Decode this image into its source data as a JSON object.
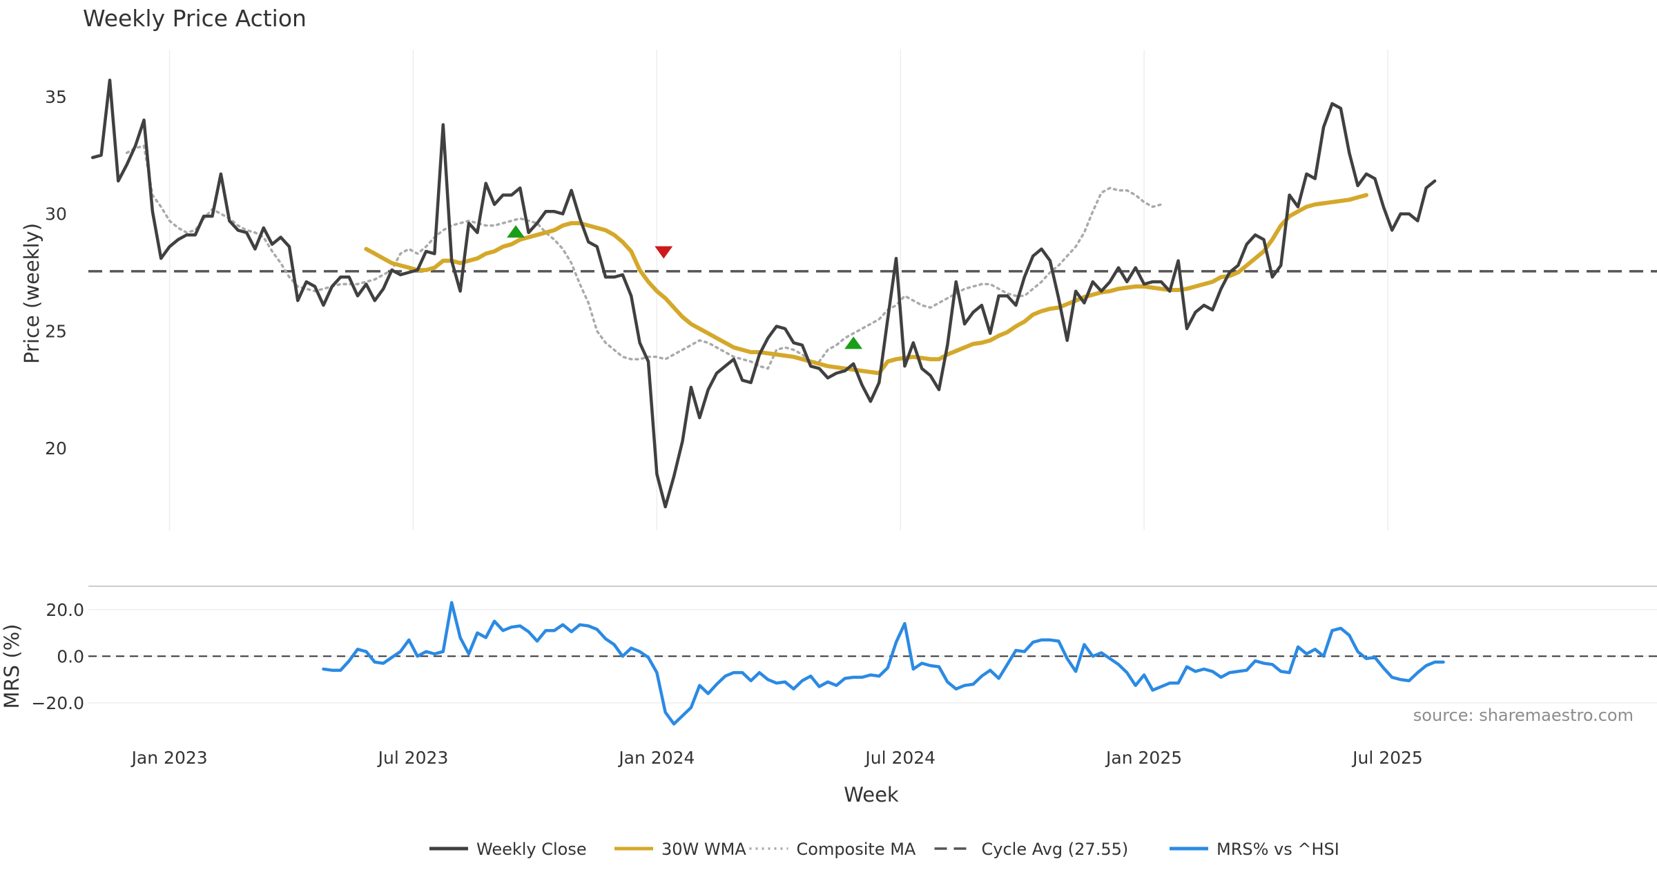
{
  "chart_data": [
    {
      "type": "line",
      "title": "Weekly Price Action",
      "xlabel": "",
      "ylabel": "Price (weekly)",
      "ylim": [
        16.5,
        37
      ],
      "xlim": [
        -1.5,
        182
      ],
      "yticks": [
        20,
        25,
        30,
        35
      ],
      "xtick_positions": [
        8,
        36.5,
        65,
        93.5,
        122,
        150.5
      ],
      "xtick_labels": [
        "Jan 2023",
        "Jul 2023",
        "Jan 2024",
        "Jul 2024",
        "Jan 2025",
        "Jul 2025"
      ],
      "cycle_avg": 27.55,
      "series": [
        {
          "name": "Weekly Close",
          "color": "#404040",
          "x_start": -1,
          "values": [
            32.4,
            32.5,
            35.7,
            31.4,
            32.1,
            32.9,
            34.0,
            30.1,
            28.1,
            28.6,
            28.9,
            29.1,
            29.1,
            29.9,
            29.9,
            31.7,
            29.7,
            29.3,
            29.2,
            28.5,
            29.4,
            28.7,
            29.0,
            28.6,
            26.3,
            27.1,
            26.9,
            26.1,
            26.9,
            27.3,
            27.3,
            26.5,
            27.0,
            26.3,
            26.8,
            27.6,
            27.4,
            27.5,
            27.6,
            28.4,
            28.3,
            33.8,
            28.0,
            26.7,
            29.6,
            29.2,
            31.3,
            30.4,
            30.8,
            30.8,
            31.1,
            29.2,
            29.6,
            30.1,
            30.1,
            30.0,
            31.0,
            29.8,
            28.8,
            28.6,
            27.3,
            27.3,
            27.4,
            26.5,
            24.5,
            23.7,
            18.9,
            17.5,
            18.8,
            20.3,
            22.6,
            21.3,
            22.5,
            23.2,
            23.5,
            23.8,
            22.9,
            22.8,
            24.0,
            24.7,
            25.2,
            25.1,
            24.5,
            24.4,
            23.5,
            23.4,
            23.0,
            23.2,
            23.3,
            23.6,
            22.7,
            22.0,
            22.8,
            25.5,
            28.1,
            23.5,
            24.5,
            23.4,
            23.1,
            22.5,
            24.4,
            27.1,
            25.3,
            25.8,
            26.1,
            24.9,
            26.5,
            26.5,
            26.1,
            27.3,
            28.2,
            28.5,
            28.0,
            26.4,
            24.6,
            26.7,
            26.2,
            27.1,
            26.7,
            27.1,
            27.7,
            27.1,
            27.7,
            27.0,
            27.1,
            27.1,
            26.7,
            28.0,
            25.1,
            25.8,
            26.1,
            25.9,
            26.8,
            27.5,
            27.8,
            28.7,
            29.1,
            28.9,
            27.3,
            27.8,
            30.8,
            30.3,
            31.7,
            31.5,
            33.7,
            34.7,
            34.5,
            32.6,
            31.2,
            31.7,
            31.5,
            30.3,
            29.3,
            30.0,
            30.0,
            29.7,
            31.1,
            31.4
          ]
        },
        {
          "name": "30W WMA",
          "color": "#d4a82a",
          "x_start": 31,
          "values": [
            28.5,
            28.3,
            28.1,
            27.9,
            27.8,
            27.7,
            27.6,
            27.6,
            27.7,
            28.0,
            28.0,
            27.9,
            28.0,
            28.1,
            28.3,
            28.4,
            28.6,
            28.7,
            28.9,
            29.0,
            29.1,
            29.2,
            29.3,
            29.5,
            29.6,
            29.6,
            29.5,
            29.4,
            29.3,
            29.1,
            28.8,
            28.4,
            27.6,
            27.1,
            26.7,
            26.4,
            26.0,
            25.6,
            25.3,
            25.1,
            24.9,
            24.7,
            24.5,
            24.3,
            24.2,
            24.1,
            24.1,
            24.05,
            24.0,
            23.95,
            23.9,
            23.8,
            23.7,
            23.6,
            23.5,
            23.45,
            23.4,
            23.35,
            23.3,
            23.25,
            23.2,
            23.7,
            23.8,
            23.85,
            23.9,
            23.85,
            23.8,
            23.8,
            24.0,
            24.15,
            24.3,
            24.45,
            24.5,
            24.6,
            24.8,
            24.95,
            25.2,
            25.4,
            25.7,
            25.85,
            25.95,
            26.0,
            26.15,
            26.3,
            26.45,
            26.55,
            26.65,
            26.7,
            26.8,
            26.85,
            26.9,
            26.9,
            26.85,
            26.8,
            26.75,
            26.75,
            26.8,
            26.9,
            27.0,
            27.1,
            27.3,
            27.35,
            27.5,
            27.8,
            28.1,
            28.4,
            28.9,
            29.5,
            29.9,
            30.1,
            30.3,
            30.4,
            30.45,
            30.5,
            30.55,
            30.6,
            30.7,
            30.8
          ]
        },
        {
          "name": "Composite MA",
          "color": "#aaaaaa",
          "x_start": 3,
          "values": [
            32.6,
            32.8,
            32.9,
            30.8,
            30.3,
            29.7,
            29.4,
            29.2,
            29.3,
            29.8,
            30.2,
            30.0,
            29.8,
            29.5,
            29.3,
            29.2,
            29.0,
            28.4,
            27.9,
            27.3,
            26.9,
            26.8,
            26.7,
            26.8,
            26.9,
            27.0,
            27.0,
            27.0,
            27.1,
            27.2,
            27.4,
            27.6,
            28.3,
            28.5,
            28.3,
            28.6,
            29.0,
            29.3,
            29.5,
            29.6,
            29.7,
            29.6,
            29.5,
            29.5,
            29.6,
            29.7,
            29.8,
            29.7,
            29.6,
            29.2,
            28.9,
            28.5,
            27.9,
            27.0,
            26.2,
            25.0,
            24.5,
            24.2,
            23.9,
            23.8,
            23.8,
            23.9,
            23.9,
            23.8,
            24.0,
            24.2,
            24.4,
            24.6,
            24.5,
            24.3,
            24.1,
            23.9,
            23.8,
            23.7,
            23.5,
            23.4,
            24.2,
            24.3,
            24.2,
            24.0,
            23.7,
            23.7,
            24.2,
            24.4,
            24.7,
            24.9,
            25.1,
            25.3,
            25.5,
            25.9,
            26.1,
            26.5,
            26.3,
            26.1,
            26.0,
            26.2,
            26.4,
            26.6,
            26.8,
            26.9,
            27.0,
            27.0,
            26.8,
            26.6,
            26.5,
            26.5,
            26.8,
            27.1,
            27.5,
            27.8,
            28.2,
            28.6,
            29.2,
            30.1,
            30.9,
            31.1,
            31.0,
            31.0,
            30.8,
            30.5,
            30.3,
            30.4
          ]
        }
      ],
      "signals": [
        {
          "type": "buy",
          "x": 48.5,
          "y": 29.25,
          "color": "#1a9e1a"
        },
        {
          "type": "sell",
          "x": 65.8,
          "y": 28.35,
          "color": "#cc1a1a"
        },
        {
          "type": "buy",
          "x": 88,
          "y": 24.5,
          "color": "#1a9e1a"
        }
      ]
    },
    {
      "type": "line",
      "title": "",
      "xlabel": "Week",
      "ylabel": "MRS (%)",
      "ylim": [
        -33,
        30
      ],
      "yticks": [
        20.0,
        0.0,
        -20.0
      ],
      "ytick_labels": [
        "20.0",
        "0.0",
        "−20.0"
      ],
      "reference_line": 0,
      "series": [
        {
          "name": "MRS% vs ^HSI",
          "color": "#2b8ae3",
          "x_start": 26,
          "values": [
            -5.5,
            -6.0,
            -6.0,
            -2.0,
            3.0,
            2.0,
            -2.5,
            -3.0,
            -0.5,
            2.0,
            7.0,
            0.0,
            2.0,
            1.0,
            2.0,
            23.0,
            8.0,
            1.0,
            10.0,
            8.0,
            15.0,
            11.0,
            12.5,
            13.0,
            10.5,
            6.5,
            11.0,
            11.0,
            13.5,
            10.5,
            13.5,
            13.0,
            11.5,
            7.5,
            5.0,
            0.0,
            3.5,
            2.0,
            -0.5,
            -7.0,
            -24.0,
            -29.0,
            -25.5,
            -22.0,
            -12.5,
            -16.0,
            -12.0,
            -8.5,
            -7.0,
            -7.0,
            -10.5,
            -7.0,
            -10.0,
            -11.5,
            -11.0,
            -14.0,
            -10.5,
            -8.5,
            -13.0,
            -11.0,
            -12.5,
            -9.5,
            -9.0,
            -9.0,
            -8.0,
            -8.5,
            -5.0,
            6.0,
            14.0,
            -5.5,
            -3.0,
            -4.0,
            -4.5,
            -11.0,
            -14.0,
            -12.5,
            -12.0,
            -8.5,
            -6.0,
            -9.5,
            -3.5,
            2.5,
            2.0,
            6.0,
            7.0,
            7.0,
            6.5,
            -1.0,
            -6.5,
            5.0,
            0.0,
            1.5,
            -1.0,
            -3.5,
            -7.0,
            -12.5,
            -8.0,
            -14.5,
            -13.0,
            -11.5,
            -11.5,
            -4.5,
            -6.5,
            -5.5,
            -6.5,
            -9.0,
            -7.0,
            -6.5,
            -6.0,
            -2.0,
            -3.0,
            -3.5,
            -6.5,
            -7.0,
            4.0,
            1.0,
            3.0,
            0.0,
            11.0,
            12.0,
            9.0,
            2.0,
            -1.0,
            -0.5,
            -5.0,
            -9.0,
            -10.0,
            -10.5,
            -7.0,
            -4.0,
            -2.5,
            -2.5
          ]
        }
      ]
    }
  ],
  "legend": [
    {
      "label": "Weekly Close",
      "color": "#404040",
      "style": "solid"
    },
    {
      "label": "30W WMA",
      "color": "#d4a82a",
      "style": "solid"
    },
    {
      "label": "Composite MA",
      "color": "#aaaaaa",
      "style": "dotted"
    },
    {
      "label": "Cycle Avg (27.55)",
      "color": "#555555",
      "style": "dashed"
    },
    {
      "label": "MRS% vs ^HSI",
      "color": "#2b8ae3",
      "style": "solid"
    }
  ],
  "source": "source: sharemaestro.com"
}
